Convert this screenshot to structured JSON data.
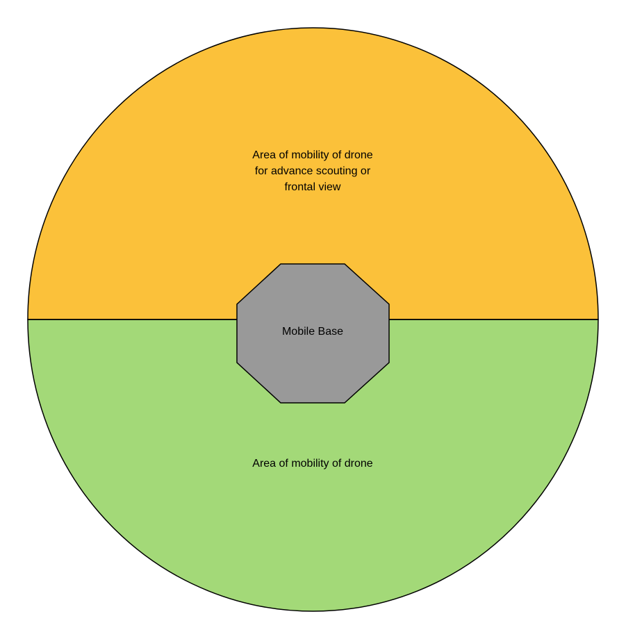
{
  "colors": {
    "upper_region": "#fbc13a",
    "lower_region": "#a3d978",
    "base": "#999999",
    "stroke": "#000000"
  },
  "regions": {
    "upper": {
      "label_lines": [
        "Area of mobility of drone",
        "for advance scouting or",
        "frontal view"
      ]
    },
    "lower": {
      "label": "Area of mobility of drone"
    }
  },
  "base": {
    "label": "Mobile Base"
  }
}
